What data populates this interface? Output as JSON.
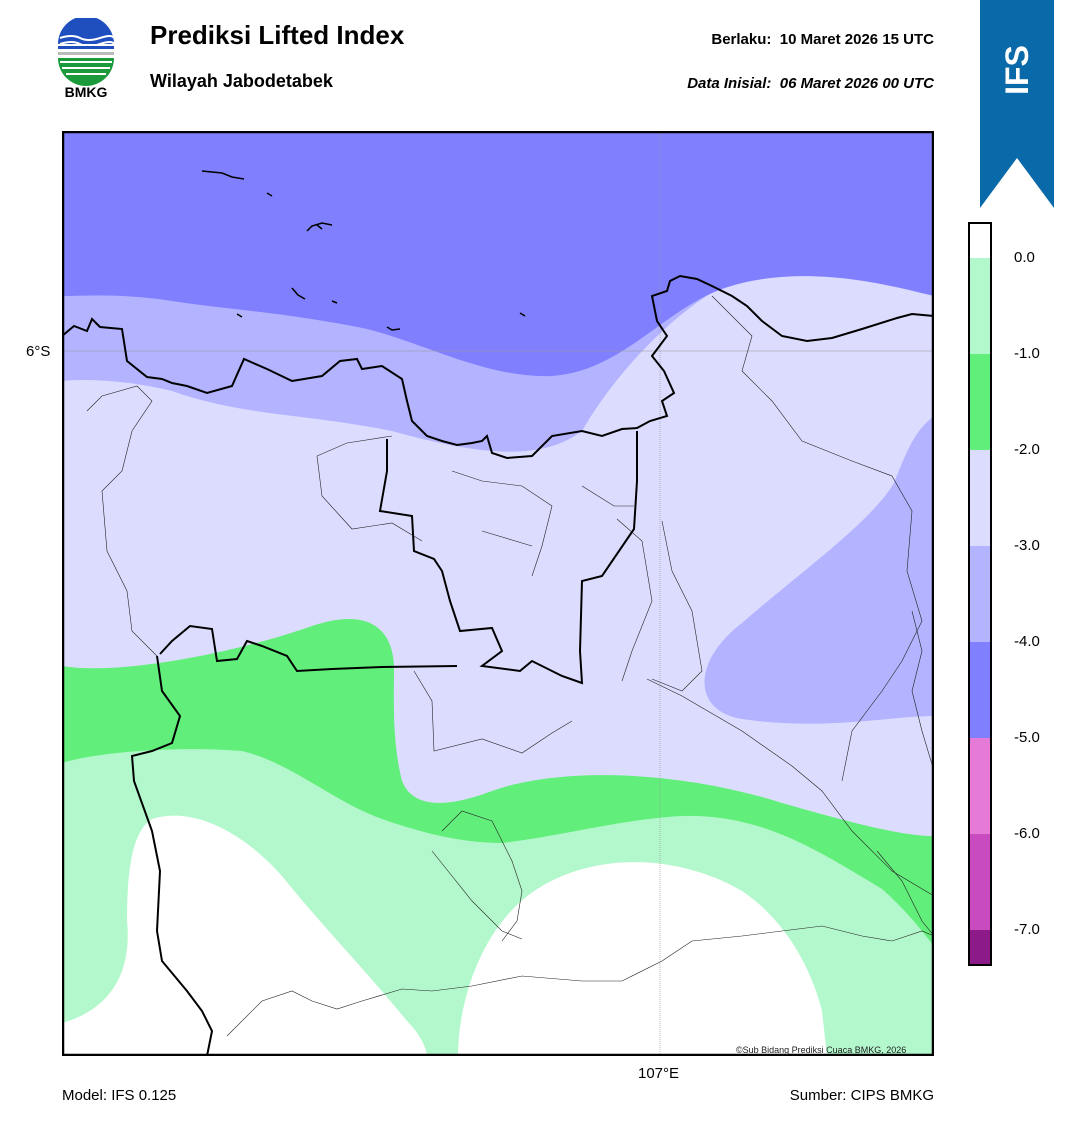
{
  "header": {
    "title": "Prediksi Lifted Index",
    "subtitle": "Wilayah Jabodetabek",
    "valid_label": "Berlaku:",
    "valid_value": "10 Maret 2026 15 UTC",
    "init_label": "Data Inisial:",
    "init_value": "06 Maret 2026 00 UTC"
  },
  "logo": {
    "text": "BMKG",
    "icon": "bmkg-logo"
  },
  "banner": {
    "text": "IFS",
    "color": "#0066a8"
  },
  "map": {
    "lat_label": "6°S",
    "lon_label": "107°E",
    "credit": "©Sub Bidang Prediksi Cuaca BMKG, 2026"
  },
  "colorbar": {
    "ticks": [
      "0.0",
      "-1.0",
      "-2.0",
      "-3.0",
      "-4.0",
      "-5.0",
      "-6.0",
      "-7.0"
    ],
    "colors": [
      "#ffffff",
      "#b3f8cc",
      "#62ee7a",
      "#dcdcff",
      "#b3b3ff",
      "#8080ff",
      "#e57ad9",
      "#c84cbf",
      "#8c1a88"
    ]
  },
  "footer": {
    "model": "Model: IFS 0.125",
    "source": "Sumber: CIPS BMKG"
  }
}
